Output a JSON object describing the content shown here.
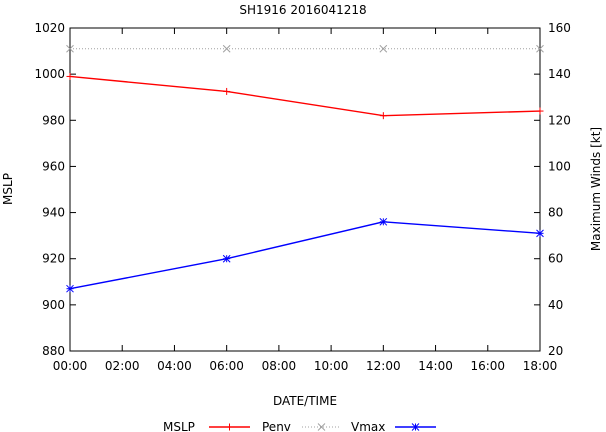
{
  "chart_data": {
    "type": "line",
    "title": "SH1916 2016041218",
    "xlabel": "DATE/TIME",
    "ylabel_left": "MSLP",
    "ylabel_right": "Maximum Winds [kt]",
    "x_ticks": [
      "00:00",
      "02:00",
      "04:00",
      "06:00",
      "08:00",
      "10:00",
      "12:00",
      "14:00",
      "16:00",
      "18:00"
    ],
    "x_tick_hours": [
      0,
      2,
      4,
      6,
      8,
      10,
      12,
      14,
      16,
      18
    ],
    "xlim": [
      0,
      18
    ],
    "ylim_left": [
      880,
      1020
    ],
    "ylim_right": [
      20,
      160
    ],
    "y_ticks_left": [
      880,
      900,
      920,
      940,
      960,
      980,
      1000,
      1020
    ],
    "y_ticks_right": [
      20,
      40,
      60,
      80,
      100,
      120,
      140,
      160
    ],
    "x": [
      0,
      6,
      12,
      18
    ],
    "series": [
      {
        "name": "MSLP",
        "axis": "left",
        "color": "#ff0000",
        "marker": "plus",
        "style": "solid",
        "values": [
          999,
          992.5,
          982,
          984
        ]
      },
      {
        "name": "Penv",
        "axis": "left",
        "color": "#a0a0a0",
        "marker": "cross",
        "style": "dotted",
        "values": [
          1011,
          1011,
          1011,
          1011
        ]
      },
      {
        "name": "Vmax",
        "axis": "right",
        "color": "#0000ff",
        "marker": "star",
        "style": "solid",
        "values": [
          47,
          60,
          76,
          71
        ]
      }
    ],
    "legend": {
      "position": "bottom",
      "labels": [
        "MSLP",
        "Penv",
        "Vmax"
      ]
    }
  }
}
